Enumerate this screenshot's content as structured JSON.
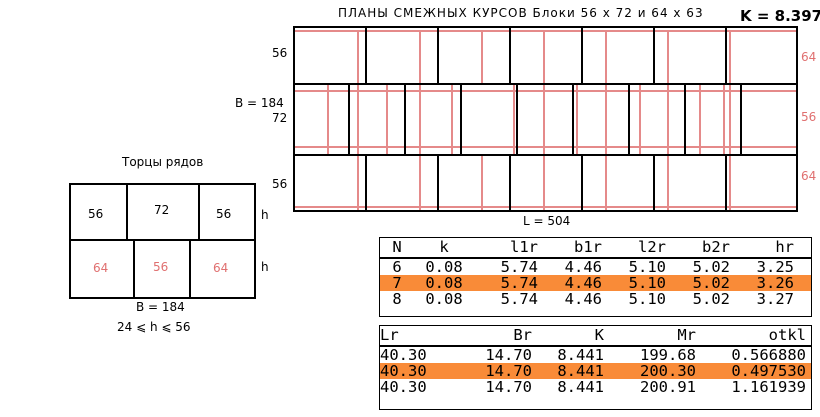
{
  "header": {
    "title": "ПЛАНЫ  СМЕЖНЫХ  КУРСОВ      Блоки  56 x 72   и   64 x 63",
    "k_label": "K = 8.397"
  },
  "plan": {
    "row_labels_left": [
      "56",
      "72",
      "56"
    ],
    "row_labels_right": [
      "64",
      "56",
      "64"
    ],
    "b_label": "B = 184",
    "l_label": "L = 504"
  },
  "ends": {
    "title": "Торцы  рядов",
    "top_row": [
      "56",
      "72",
      "56"
    ],
    "bottom_row": [
      "64",
      "56",
      "64"
    ],
    "h_labels": [
      "h",
      "h"
    ],
    "b_label": "B = 184",
    "range_label": "24  ⩽   h   ⩽  56"
  },
  "table1": {
    "headers": [
      "N",
      "k",
      "l1r",
      "b1r",
      "l2r",
      "b2r",
      "hr"
    ],
    "rows": [
      {
        "highlight": false,
        "cells": [
          "6",
          "0.08",
          "5.74",
          "4.46",
          "5.10",
          "5.02",
          "3.25"
        ]
      },
      {
        "highlight": true,
        "cells": [
          "7",
          "0.08",
          "5.74",
          "4.46",
          "5.10",
          "5.02",
          "3.26"
        ]
      },
      {
        "highlight": false,
        "cells": [
          "8",
          "0.08",
          "5.74",
          "4.46",
          "5.10",
          "5.02",
          "3.27"
        ]
      }
    ]
  },
  "table2": {
    "headers": [
      "Lr",
      "Br",
      "K",
      "Mr",
      "otkl"
    ],
    "rows": [
      {
        "highlight": false,
        "cells": [
          "40.30",
          "14.70",
          "8.441",
          "199.68",
          "0.566880"
        ]
      },
      {
        "highlight": true,
        "cells": [
          "40.30",
          "14.70",
          "8.441",
          "200.30",
          "0.497530"
        ]
      },
      {
        "highlight": false,
        "cells": [
          "40.30",
          "14.70",
          "8.441",
          "200.91",
          "1.161939"
        ]
      }
    ]
  },
  "colors": {
    "black_line": "#000000",
    "red_line": "#e58a8a",
    "red_text": "#e07070",
    "highlight": "#f98b38"
  }
}
